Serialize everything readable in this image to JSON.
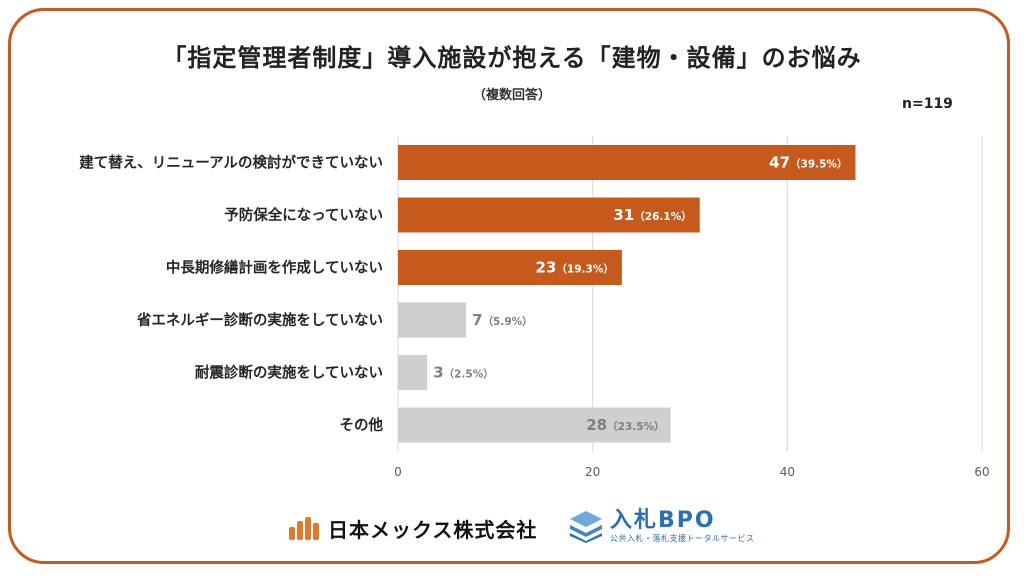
{
  "header": {
    "title": "「指定管理者制度」導入施設が抱える「建物・設備」のお悩み",
    "subtitle": "（複数回答）",
    "sample_size": "n=119"
  },
  "chart_data": {
    "type": "bar",
    "orientation": "horizontal",
    "title": "「指定管理者制度」導入施設が抱える「建物・設備」のお悩み",
    "subtitle": "（複数回答）",
    "xlabel": "",
    "ylabel": "",
    "xlim": [
      0,
      60
    ],
    "x_ticks": [
      0,
      20,
      40,
      60
    ],
    "grid": "vertical",
    "legend": "none",
    "categories": [
      "建て替え、リニューアルの検討ができていない",
      "予防保全になっていない",
      "中長期修繕計画を作成していない",
      "省エネルギー診断の実施をしていない",
      "耐震診断の実施をしていない",
      "その他"
    ],
    "values": [
      47,
      31,
      23,
      7,
      3,
      28
    ],
    "value_labels": [
      "47",
      "31",
      "23",
      "7",
      "3",
      "28"
    ],
    "percent_labels": [
      "（39.5%）",
      "（26.1%）",
      "（19.3%）",
      "（5.9%）",
      "（2.5%）",
      "（23.5%）"
    ],
    "highlighted": [
      true,
      true,
      true,
      false,
      false,
      false
    ],
    "colors": {
      "highlight": "#c55a1c",
      "normal": "#d0cfcf",
      "label_on_highlight": "#ffffff",
      "label_on_normal": "#7f7f7f",
      "grid": "#d9d9d9",
      "frame": "#c55a1c"
    }
  },
  "footer": {
    "logo_left_icon": "nihon-mex-logo-icon",
    "logo_left_name": "日本メックス株式会社",
    "logo_right_icon": "stacked-layers-logo-icon",
    "logo_right_name": "入札BPO",
    "logo_right_tagline": "公共入札・落札支援トータルサービス"
  }
}
